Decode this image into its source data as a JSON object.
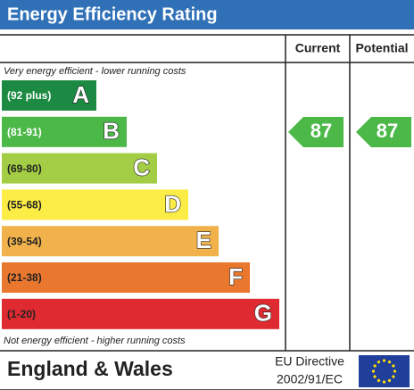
{
  "header": {
    "title": "Energy Efficiency Rating"
  },
  "columns": {
    "current": "Current",
    "potential": "Potential"
  },
  "top_note": "Very energy efficient - lower running costs",
  "bottom_note": "Not energy efficient - higher running costs",
  "bands": [
    {
      "range": "(92 plus)",
      "letter": "A",
      "color": "#1c8a42"
    },
    {
      "range": "(81-91)",
      "letter": "B",
      "color": "#4cb848"
    },
    {
      "range": "(69-80)",
      "letter": "C",
      "color": "#a3cd45"
    },
    {
      "range": "(55-68)",
      "letter": "D",
      "color": "#fbed45"
    },
    {
      "range": "(39-54)",
      "letter": "E",
      "color": "#f2b24b"
    },
    {
      "range": "(21-38)",
      "letter": "F",
      "color": "#e9772d"
    },
    {
      "range": "(1-20)",
      "letter": "G",
      "color": "#de2a30"
    }
  ],
  "current": {
    "value": "87",
    "color": "#4cb848"
  },
  "potential": {
    "value": "87",
    "color": "#4cb848"
  },
  "footer": {
    "region": "England & Wales",
    "directive_line1": "EU Directive",
    "directive_line2": "2002/91/EC"
  }
}
